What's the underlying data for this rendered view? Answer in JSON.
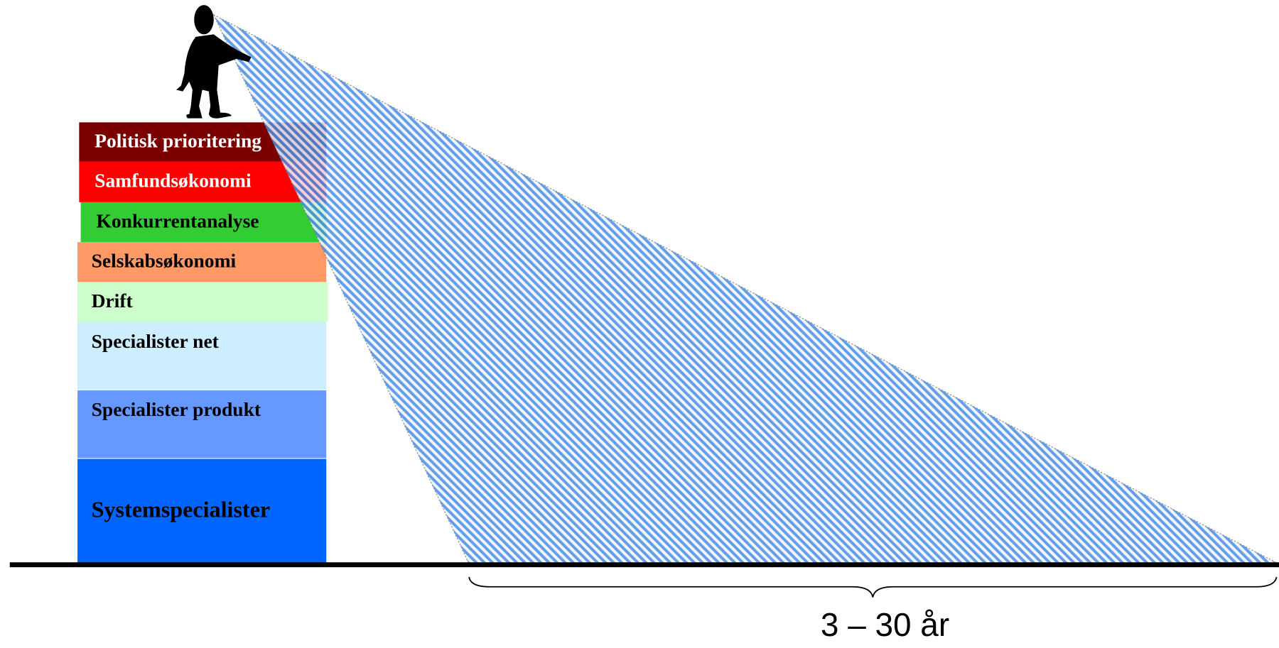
{
  "layers": [
    {
      "label": "Politisk prioritering"
    },
    {
      "label": "Samfundsøkonomi"
    },
    {
      "label": "Konkurrentanalyse"
    },
    {
      "label": "Selskabsøkonomi"
    },
    {
      "label": "Drift"
    },
    {
      "label": "Specialister net"
    },
    {
      "label": "Specialister produkt"
    },
    {
      "label": "Systemspecialister"
    }
  ],
  "horizon_label": "3 – 30 år"
}
